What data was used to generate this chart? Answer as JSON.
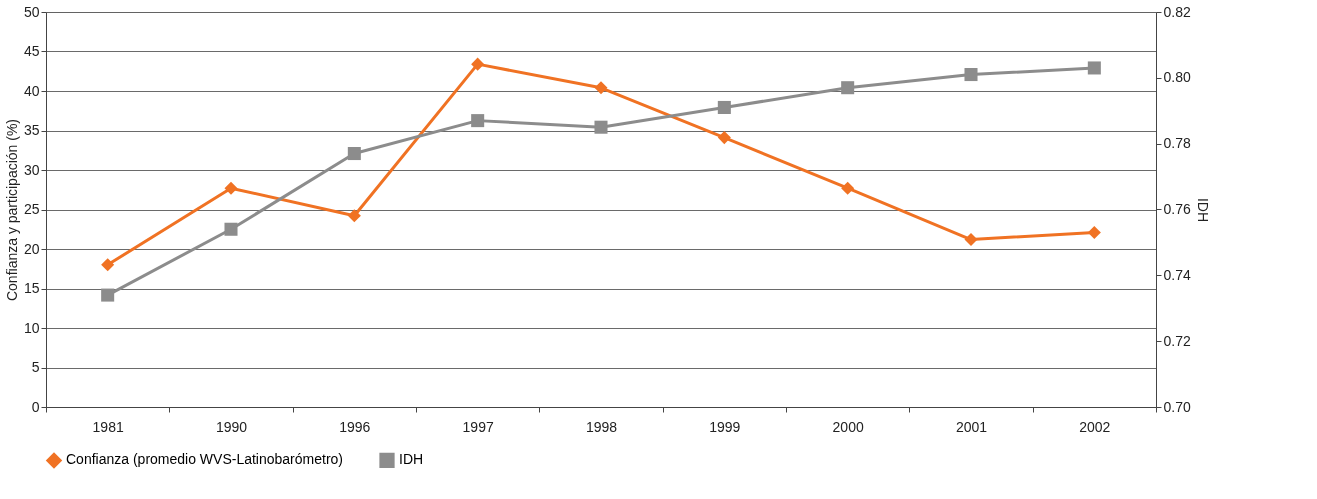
{
  "chart_data": {
    "type": "line",
    "categories": [
      "1981",
      "1990",
      "1996",
      "1997",
      "1998",
      "1999",
      "2000",
      "2001",
      "2002"
    ],
    "series": [
      {
        "name": "Confianza (promedio WVS-Latinobarómetro)",
        "color": "#f07223",
        "marker": "diamond",
        "values": [
          18.0,
          27.7,
          24.2,
          43.4,
          40.4,
          34.1,
          27.7,
          21.2,
          22.1
        ]
      },
      {
        "name": "IDH",
        "color": "#8c8c8c",
        "marker": "square",
        "axis": "y2",
        "values": [
          0.734,
          0.754,
          0.777,
          0.787,
          0.785,
          0.791,
          0.797,
          0.801,
          0.803
        ]
      }
    ],
    "ylabel": "Confianza y participación (%)",
    "y2label": "IDH",
    "ylim": [
      0,
      50
    ],
    "yticks": [
      0,
      5,
      10,
      15,
      20,
      25,
      30,
      35,
      40,
      45,
      50
    ],
    "y2lim": [
      0.7,
      0.82
    ],
    "y2ticks": [
      {
        "value": 0.7,
        "label": "0.70"
      },
      {
        "value": 0.72,
        "label": "0.72"
      },
      {
        "value": 0.74,
        "label": "0.74"
      },
      {
        "value": 0.76,
        "label": "0.76"
      },
      {
        "value": 0.78,
        "label": "0.78"
      },
      {
        "value": 0.8,
        "label": "0.80"
      },
      {
        "value": 0.82,
        "label": "0.82"
      }
    ],
    "grid": "y",
    "legend": "bottom",
    "line_style": "solid"
  }
}
